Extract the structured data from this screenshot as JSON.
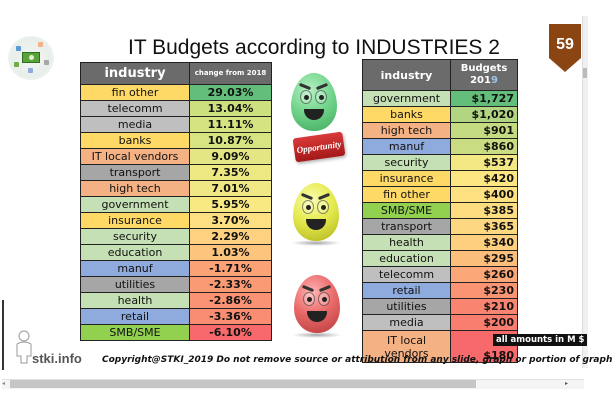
{
  "slide": {
    "title": "IT Budgets according to INDUSTRIES 2",
    "page_number": "59",
    "page_badge_color": "#8B4513",
    "logo_icon": "money-services-icon",
    "footer": {
      "brand": "stki.info",
      "copyright": "Copyright@STKI_2019 Do not remove source or attribution from any slide, graph or portion of graph"
    },
    "note": "all amounts in M $",
    "opportunity_label": "Opportunity"
  },
  "change_table": {
    "headers": [
      "industry",
      "change from 2018"
    ],
    "rows": [
      {
        "industry": "fin other",
        "value": "29.03%",
        "ind_color": "#FFD966",
        "val_color": "#63BE7B"
      },
      {
        "industry": "telecomm",
        "value": "13.04%",
        "ind_color": "#BFBFBF",
        "val_color": "#CCE07F"
      },
      {
        "industry": "media",
        "value": "11.11%",
        "ind_color": "#BFBFBF",
        "val_color": "#D6E381"
      },
      {
        "industry": "banks",
        "value": "10.87%",
        "ind_color": "#FFD966",
        "val_color": "#D8E381"
      },
      {
        "industry": "IT local vendors",
        "value": "9.09%",
        "ind_color": "#F4B183",
        "val_color": "#E3E683"
      },
      {
        "industry": "transport",
        "value": "7.35%",
        "ind_color": "#A6A6A6",
        "val_color": "#EEE883"
      },
      {
        "industry": "high tech",
        "value": "7.01%",
        "ind_color": "#F4B183",
        "val_color": "#F0E884"
      },
      {
        "industry": "government",
        "value": "5.95%",
        "ind_color": "#C5E0B4",
        "val_color": "#F8E983"
      },
      {
        "industry": "insurance",
        "value": "3.70%",
        "ind_color": "#FFD966",
        "val_color": "#FEDF81"
      },
      {
        "industry": "security",
        "value": "2.29%",
        "ind_color": "#C5E0B4",
        "val_color": "#FDD17F"
      },
      {
        "industry": "education",
        "value": "1.03%",
        "ind_color": "#C5E0B4",
        "val_color": "#FCC47C"
      },
      {
        "industry": "manuf",
        "value": "-1.71%",
        "ind_color": "#8FAADC",
        "val_color": "#FBA276"
      },
      {
        "industry": "utilities",
        "value": "-2.33%",
        "ind_color": "#A6A6A6",
        "val_color": "#FA9A75"
      },
      {
        "industry": "health",
        "value": "-2.86%",
        "ind_color": "#C5E0B4",
        "val_color": "#FA9373"
      },
      {
        "industry": "retail",
        "value": "-3.36%",
        "ind_color": "#8FAADC",
        "val_color": "#F98D72"
      },
      {
        "industry": "SMB/SME",
        "value": "-6.10%",
        "ind_color": "#92D050",
        "val_color": "#F8696B"
      }
    ]
  },
  "budget_table": {
    "headers": [
      "industry",
      "Budgets",
      "2019"
    ],
    "rows": [
      {
        "industry": "government",
        "value": "$1,727",
        "ind_color": "#C5E0B4",
        "val_color": "#63BE7B"
      },
      {
        "industry": "banks",
        "value": "$1,020",
        "ind_color": "#FFD966",
        "val_color": "#B1D580"
      },
      {
        "industry": "high tech",
        "value": "$901",
        "ind_color": "#F4B183",
        "val_color": "#C4DB81"
      },
      {
        "industry": "manuf",
        "value": "$860",
        "ind_color": "#8FAADC",
        "val_color": "#CADC81"
      },
      {
        "industry": "security",
        "value": "$537",
        "ind_color": "#C5E0B4",
        "val_color": "#F3E884"
      },
      {
        "industry": "insurance",
        "value": "$420",
        "ind_color": "#FFD966",
        "val_color": "#FEE783"
      },
      {
        "industry": "fin other",
        "value": "$400",
        "ind_color": "#FFD966",
        "val_color": "#FEE282"
      },
      {
        "industry": "SMB/SME",
        "value": "$385",
        "ind_color": "#92D050",
        "val_color": "#FEDD81"
      },
      {
        "industry": "transport",
        "value": "$365",
        "ind_color": "#A6A6A6",
        "val_color": "#FED880"
      },
      {
        "industry": "health",
        "value": "$340",
        "ind_color": "#C5E0B4",
        "val_color": "#FDCF7E"
      },
      {
        "industry": "education",
        "value": "$295",
        "ind_color": "#C5E0B4",
        "val_color": "#FCBE7B"
      },
      {
        "industry": "telecomm",
        "value": "$260",
        "ind_color": "#BFBFBF",
        "val_color": "#FBA777"
      },
      {
        "industry": "retail",
        "value": "$230",
        "ind_color": "#8FAADC",
        "val_color": "#FA9473"
      },
      {
        "industry": "utilities",
        "value": "$210",
        "ind_color": "#A6A6A6",
        "val_color": "#F98570"
      },
      {
        "industry": "media",
        "value": "$200",
        "ind_color": "#BFBFBF",
        "val_color": "#F97E6F"
      },
      {
        "industry": "IT local vendors",
        "value": "$180",
        "ind_color": "#F4B183",
        "val_color": "#F8696B"
      }
    ]
  },
  "icons": {
    "green_egg": "happy-green-egg-icon",
    "yellow_egg": "smiling-yellow-egg-icon",
    "red_egg": "grinning-red-egg-icon"
  }
}
